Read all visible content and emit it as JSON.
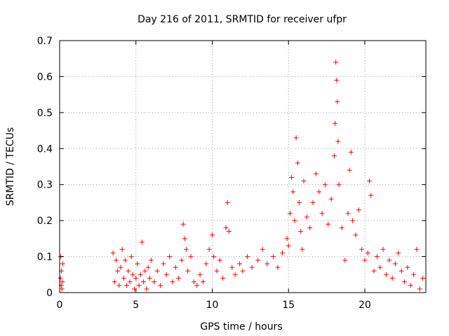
{
  "chart_data": {
    "type": "scatter",
    "title": "Day 216 of 2011, SRMTID for receiver ufpr",
    "xlabel": "GPS time / hours",
    "ylabel": "SRMTID / TECUs",
    "xlim": [
      0,
      24
    ],
    "ylim": [
      0,
      0.7
    ],
    "x_ticks": [
      0,
      5,
      10,
      15,
      20
    ],
    "x_tick_labels": [
      "0",
      "5",
      "10",
      "15",
      "20"
    ],
    "y_ticks": [
      0,
      0.1,
      0.2,
      0.3,
      0.4,
      0.5,
      0.6,
      0.7
    ],
    "y_tick_labels": [
      "0",
      "0.1",
      "0.2",
      "0.3",
      "0.4",
      "0.5",
      "0.6",
      "0.7"
    ],
    "grid": true,
    "marker": "+",
    "series": [
      {
        "name": "SRMTID",
        "color": "#ff0000",
        "points": [
          [
            0.05,
            0.04
          ],
          [
            0.08,
            0.1
          ],
          [
            0.1,
            0.02
          ],
          [
            0.12,
            0.06
          ],
          [
            0.15,
            0.01
          ],
          [
            0.18,
            0.03
          ],
          [
            0.2,
            0.08
          ],
          [
            3.5,
            0.11
          ],
          [
            3.6,
            0.03
          ],
          [
            3.7,
            0.09
          ],
          [
            3.8,
            0.06
          ],
          [
            3.9,
            0.02
          ],
          [
            4.0,
            0.07
          ],
          [
            4.1,
            0.12
          ],
          [
            4.2,
            0.04
          ],
          [
            4.3,
            0.09
          ],
          [
            4.4,
            0.02
          ],
          [
            4.5,
            0.06
          ],
          [
            4.6,
            0.03
          ],
          [
            4.7,
            0.1
          ],
          [
            4.8,
            0.05
          ],
          [
            4.9,
            0.01
          ],
          [
            5.0,
            0.04
          ],
          [
            5.1,
            0.08
          ],
          [
            5.2,
            0.02
          ],
          [
            5.3,
            0.05
          ],
          [
            5.4,
            0.14
          ],
          [
            5.5,
            0.03
          ],
          [
            5.6,
            0.06
          ],
          [
            5.7,
            0.01
          ],
          [
            5.8,
            0.07
          ],
          [
            5.9,
            0.04
          ],
          [
            6.0,
            0.09
          ],
          [
            6.2,
            0.03
          ],
          [
            6.4,
            0.06
          ],
          [
            6.6,
            0.02
          ],
          [
            6.8,
            0.08
          ],
          [
            7.0,
            0.05
          ],
          [
            7.2,
            0.1
          ],
          [
            7.4,
            0.03
          ],
          [
            7.6,
            0.07
          ],
          [
            7.8,
            0.04
          ],
          [
            8.0,
            0.09
          ],
          [
            8.1,
            0.19
          ],
          [
            8.2,
            0.15
          ],
          [
            8.3,
            0.12
          ],
          [
            8.4,
            0.06
          ],
          [
            8.6,
            0.1
          ],
          [
            8.8,
            0.03
          ],
          [
            9.0,
            0.02
          ],
          [
            9.2,
            0.05
          ],
          [
            9.4,
            0.03
          ],
          [
            9.6,
            0.08
          ],
          [
            9.8,
            0.12
          ],
          [
            10.0,
            0.16
          ],
          [
            10.1,
            0.1
          ],
          [
            10.3,
            0.06
          ],
          [
            10.5,
            0.09
          ],
          [
            10.7,
            0.04
          ],
          [
            10.9,
            0.18
          ],
          [
            11.0,
            0.25
          ],
          [
            11.1,
            0.17
          ],
          [
            11.3,
            0.07
          ],
          [
            11.5,
            0.05
          ],
          [
            11.8,
            0.08
          ],
          [
            12.0,
            0.06
          ],
          [
            12.3,
            0.1
          ],
          [
            12.6,
            0.07
          ],
          [
            13.0,
            0.09
          ],
          [
            13.3,
            0.12
          ],
          [
            13.6,
            0.08
          ],
          [
            14.0,
            0.1
          ],
          [
            14.3,
            0.07
          ],
          [
            14.6,
            0.11
          ],
          [
            14.9,
            0.15
          ],
          [
            15.0,
            0.13
          ],
          [
            15.1,
            0.22
          ],
          [
            15.2,
            0.32
          ],
          [
            15.3,
            0.28
          ],
          [
            15.4,
            0.2
          ],
          [
            15.5,
            0.43
          ],
          [
            15.6,
            0.36
          ],
          [
            15.7,
            0.25
          ],
          [
            15.8,
            0.17
          ],
          [
            15.9,
            0.12
          ],
          [
            16.0,
            0.31
          ],
          [
            16.2,
            0.21
          ],
          [
            16.4,
            0.18
          ],
          [
            16.6,
            0.25
          ],
          [
            16.8,
            0.33
          ],
          [
            17.0,
            0.28
          ],
          [
            17.2,
            0.22
          ],
          [
            17.4,
            0.3
          ],
          [
            17.6,
            0.19
          ],
          [
            17.8,
            0.26
          ],
          [
            18.0,
            0.38
          ],
          [
            18.05,
            0.47
          ],
          [
            18.1,
            0.64
          ],
          [
            18.15,
            0.59
          ],
          [
            18.2,
            0.53
          ],
          [
            18.25,
            0.42
          ],
          [
            18.3,
            0.3
          ],
          [
            18.5,
            0.18
          ],
          [
            18.7,
            0.09
          ],
          [
            18.9,
            0.22
          ],
          [
            19.0,
            0.34
          ],
          [
            19.1,
            0.39
          ],
          [
            19.2,
            0.2
          ],
          [
            19.4,
            0.16
          ],
          [
            19.6,
            0.23
          ],
          [
            19.8,
            0.12
          ],
          [
            20.0,
            0.09
          ],
          [
            20.2,
            0.11
          ],
          [
            20.3,
            0.31
          ],
          [
            20.4,
            0.27
          ],
          [
            20.6,
            0.06
          ],
          [
            20.8,
            0.1
          ],
          [
            21.0,
            0.07
          ],
          [
            21.2,
            0.12
          ],
          [
            21.4,
            0.05
          ],
          [
            21.6,
            0.09
          ],
          [
            21.8,
            0.04
          ],
          [
            22.0,
            0.08
          ],
          [
            22.2,
            0.11
          ],
          [
            22.4,
            0.06
          ],
          [
            22.6,
            0.03
          ],
          [
            22.8,
            0.07
          ],
          [
            23.0,
            0.02
          ],
          [
            23.2,
            0.05
          ],
          [
            23.4,
            0.12
          ],
          [
            23.6,
            0.01
          ],
          [
            23.8,
            0.04
          ]
        ]
      }
    ]
  }
}
